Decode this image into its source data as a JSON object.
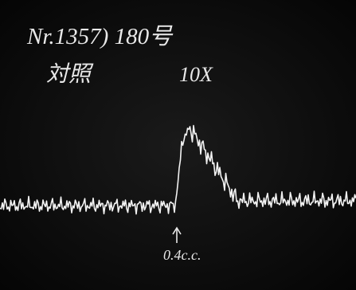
{
  "annotations": {
    "header": "Nr.1357) 180号",
    "subheader_left": "対照",
    "subheader_right": "10X",
    "marker": "0.4c.c."
  }
}
